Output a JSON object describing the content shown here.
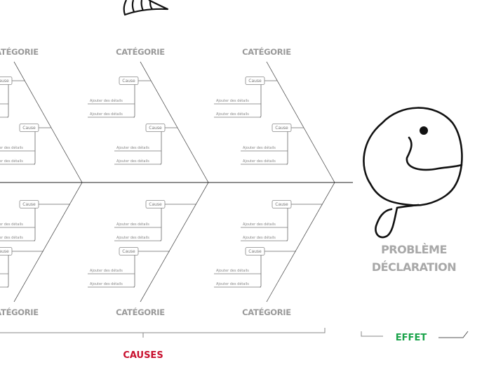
{
  "category_label": "CATÉGORIE",
  "cause_label": "Cause",
  "detail_label": "Ajouter des détails",
  "problem": {
    "line1": "PROBLÈME",
    "line2": "DÉCLARATION"
  },
  "causes_label": "CAUSES",
  "effect_label": "EFFET",
  "colors": {
    "causes": "#c8102e",
    "effect": "#1aa34a",
    "category": "#9a9a9a"
  },
  "categories": [
    {
      "position": "top",
      "column": 1
    },
    {
      "position": "top",
      "column": 2
    },
    {
      "position": "top",
      "column": 3
    },
    {
      "position": "bottom",
      "column": 1
    },
    {
      "position": "bottom",
      "column": 2
    },
    {
      "position": "bottom",
      "column": 3
    }
  ]
}
